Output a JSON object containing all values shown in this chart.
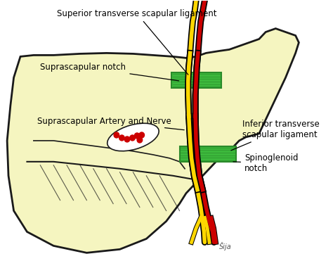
{
  "background_color": "#FFFFFF",
  "body_fill": "#F5F5C0",
  "body_outline": "#1a1a1a",
  "ligament_color": "#3CB83C",
  "ligament_dark": "#2a8a2a",
  "artery_color": "#CC0000",
  "nerve_color": "#FFD700",
  "labels": {
    "superior_ligament": "Superior transverse scapular ligament",
    "suprascapular_notch": "Suprascapular notch",
    "artery_nerve": "Suprascapular Artery and Nerve",
    "inferior_ligament": "Inferior transverse\nscapular ligament",
    "spinoglenoid": "Spinoglenoid\nnotch"
  }
}
